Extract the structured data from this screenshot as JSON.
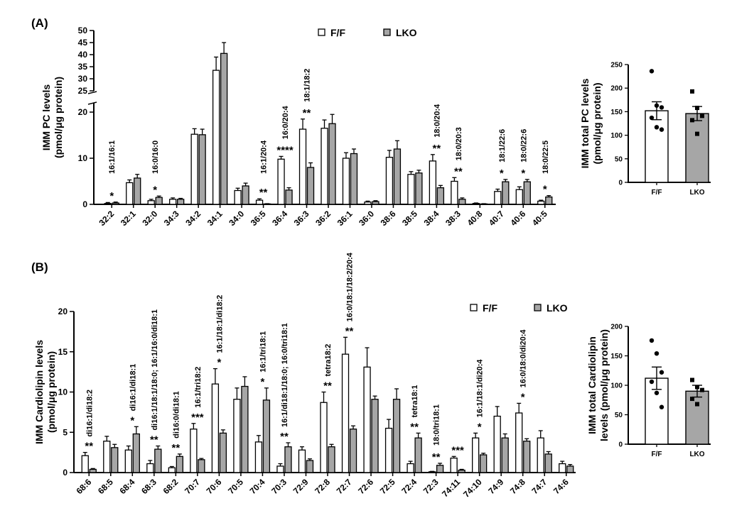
{
  "chart_data": [
    {
      "id": "A-main",
      "panel_label": "(A)",
      "type": "bar",
      "ylabel": [
        "IMM PC levels",
        "(pmol/μg protein)"
      ],
      "yticks_lower": [
        0,
        10,
        20
      ],
      "yticks_upper": [
        25,
        30,
        35,
        40,
        45,
        50
      ],
      "axis_break": [
        22,
        25
      ],
      "categories": [
        "32:2",
        "32:1",
        "32:0",
        "34:3",
        "34:2",
        "34:1",
        "34:0",
        "36:5",
        "36:4",
        "36:3",
        "36:2",
        "36:1",
        "36:0",
        "38:6",
        "38:5",
        "38:4",
        "38:3",
        "40:8",
        "40:7",
        "40:6",
        "40:5"
      ],
      "series": [
        {
          "name": "F/F",
          "color": "#ffffff",
          "values": [
            0.2,
            4.7,
            0.8,
            1.1,
            15.2,
            33.5,
            3.0,
            0.9,
            9.8,
            16.3,
            16.5,
            10.0,
            0.5,
            10.2,
            6.5,
            9.4,
            5.0,
            0.2,
            2.8,
            3.2,
            0.7
          ],
          "errors": [
            0.2,
            0.6,
            0.3,
            0.3,
            1.2,
            5.5,
            0.5,
            0.3,
            0.6,
            2.2,
            1.8,
            1.2,
            0.2,
            1.5,
            0.6,
            1.4,
            0.8,
            0.1,
            0.5,
            0.6,
            0.2
          ]
        },
        {
          "name": "LKO",
          "color": "#a6a6a6",
          "values": [
            0.3,
            5.7,
            1.5,
            1.1,
            15.1,
            40.5,
            4.0,
            0.1,
            3.1,
            8.0,
            17.5,
            11.0,
            0.6,
            12.0,
            6.8,
            3.6,
            1.1,
            0.1,
            4.9,
            4.9,
            1.6
          ],
          "errors": [
            0.2,
            0.8,
            0.3,
            0.2,
            1.2,
            4.5,
            0.6,
            0.05,
            0.5,
            1.0,
            2.0,
            1.0,
            0.2,
            1.8,
            0.6,
            0.5,
            0.3,
            0.05,
            0.5,
            0.5,
            0.3
          ]
        }
      ],
      "significance": [
        "*",
        "",
        "*",
        "",
        "",
        "",
        "",
        "**",
        "****",
        "**",
        "",
        "",
        "",
        "",
        "",
        "**",
        "**",
        "",
        "*",
        "*",
        "*"
      ],
      "annotations": [
        {
          "category": "32:2",
          "text": "16:1/16:1"
        },
        {
          "category": "32:0",
          "text": "16:0/16:0"
        },
        {
          "category": "36:5",
          "text": "16:1/20:4"
        },
        {
          "category": "36:4",
          "text": "16:0/20:4"
        },
        {
          "category": "36:3",
          "text": "18:1/18:2"
        },
        {
          "category": "38:4",
          "text": "18:0/20:4"
        },
        {
          "category": "38:3",
          "text": "18:0/20:3"
        },
        {
          "category": "40:7",
          "text": "18:1/22:6"
        },
        {
          "category": "40:6",
          "text": "18:0/22:6"
        },
        {
          "category": "40:5",
          "text": "18:0/22:5"
        }
      ]
    },
    {
      "id": "A-total",
      "type": "bar",
      "ylabel": [
        "IMM total PC levels",
        "(pmol/μg protein)"
      ],
      "ylim": [
        0,
        250
      ],
      "yticks": [
        0,
        50,
        100,
        150,
        200,
        250
      ],
      "categories": [
        "F/F",
        "LKO"
      ],
      "colors": [
        "#ffffff",
        "#a6a6a6"
      ],
      "values": [
        152,
        146
      ],
      "errors": [
        19,
        15
      ],
      "points": [
        [
          236,
          163,
          159,
          137,
          117,
          112
        ],
        [
          193,
          158,
          141,
          132,
          103
        ]
      ]
    },
    {
      "id": "B-main",
      "panel_label": "(B)",
      "type": "bar",
      "ylabel": [
        "IMM Cardiolipin levels",
        "(pmol/μg protein)"
      ],
      "ylim": [
        0,
        20
      ],
      "yticks": [
        0,
        5,
        10,
        15,
        20
      ],
      "categories": [
        "68:6",
        "68:5",
        "68:4",
        "68:3",
        "68:2",
        "70:7",
        "70:6",
        "70:5",
        "70:4",
        "70:3",
        "72:9",
        "72:8",
        "72:7",
        "72:6",
        "72:5",
        "72:4",
        "72:3",
        "74:11",
        "74:10",
        "74:9",
        "74:8",
        "74:7",
        "74:6"
      ],
      "series": [
        {
          "name": "F/F",
          "color": "#ffffff",
          "values": [
            2.1,
            3.9,
            2.8,
            1.1,
            0.6,
            5.4,
            11.0,
            9.1,
            3.8,
            0.8,
            2.8,
            8.7,
            14.7,
            13.1,
            5.5,
            1.1,
            0.1,
            1.8,
            4.3,
            7.0,
            7.4,
            4.3,
            1.1
          ],
          "errors": [
            0.4,
            0.6,
            0.5,
            0.4,
            0.15,
            0.7,
            1.9,
            1.4,
            0.8,
            0.3,
            0.4,
            1.3,
            2.1,
            2.4,
            1.1,
            0.3,
            0.05,
            0.2,
            0.6,
            1.2,
            1.2,
            0.9,
            0.3
          ]
        },
        {
          "name": "LKO",
          "color": "#a6a6a6",
          "values": [
            0.4,
            3.1,
            4.8,
            2.9,
            2.0,
            1.6,
            4.9,
            10.7,
            9.0,
            3.2,
            1.5,
            3.2,
            5.4,
            9.1,
            9.1,
            4.3,
            0.9,
            0.3,
            2.2,
            4.3,
            3.9,
            2.3,
            0.8
          ],
          "errors": [
            0.1,
            0.4,
            0.9,
            0.4,
            0.3,
            0.15,
            0.4,
            1.2,
            1.5,
            0.5,
            0.2,
            0.3,
            0.4,
            0.4,
            1.3,
            0.6,
            0.25,
            0.1,
            0.2,
            0.5,
            0.3,
            0.3,
            0.2
          ]
        }
      ],
      "significance": [
        "**",
        "",
        "*",
        "**",
        "**",
        "***",
        "*",
        "",
        "*",
        "**",
        "",
        "**",
        "**",
        "",
        "",
        "**",
        "**",
        "***",
        "*",
        "",
        "*",
        "",
        ""
      ],
      "annotations": [
        {
          "category": "68:6",
          "text": "di16:1/di18:2"
        },
        {
          "category": "68:4",
          "text": "di16:1/di18:1"
        },
        {
          "category": "68:3",
          "text": "di16:1/18:1/18:0; 16:1/16:0/di18:1"
        },
        {
          "category": "68:2",
          "text": "di16:0/di18:1"
        },
        {
          "category": "70:7",
          "text": "16:1/tri18:2"
        },
        {
          "category": "70:6",
          "text": "16:1/18:1/di18:2"
        },
        {
          "category": "70:4",
          "text": "16:1/tri18:1"
        },
        {
          "category": "70:3",
          "text": "16:1/di18:1/18:0; 16:0/tri18:1"
        },
        {
          "category": "72:8",
          "text": "tetra18:2"
        },
        {
          "category": "72:7",
          "text": "16:0/18:1/18:2/20:4"
        },
        {
          "category": "72:4",
          "text": "tetra18:1"
        },
        {
          "category": "72:3",
          "text": "18:0/tri18:1"
        },
        {
          "category": "74:10",
          "text": "16:1/18:1/di20:4"
        },
        {
          "category": "74:8",
          "text": "16:0/18:0/di20:4"
        }
      ]
    },
    {
      "id": "B-total",
      "type": "bar",
      "ylabel": [
        "IMM total Cardiolipin",
        "levels (pmol/μg protein)"
      ],
      "ylim": [
        0,
        200
      ],
      "yticks": [
        0,
        50,
        100,
        150,
        200
      ],
      "categories": [
        "F/F",
        "LKO"
      ],
      "colors": [
        "#ffffff",
        "#a6a6a6"
      ],
      "values": [
        112,
        90
      ],
      "errors": [
        19,
        10
      ],
      "points": [
        [
          176,
          154,
          122,
          106,
          87,
          63
        ],
        [
          109,
          97,
          92,
          77,
          68
        ]
      ]
    }
  ],
  "legend": {
    "items": [
      "F/F",
      "LKO"
    ],
    "colors": [
      "#ffffff",
      "#a6a6a6"
    ]
  }
}
